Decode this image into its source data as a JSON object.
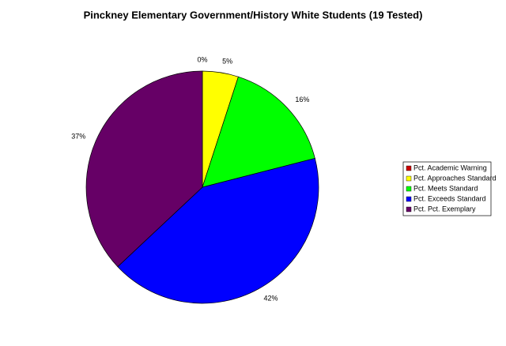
{
  "chart_data": {
    "type": "pie",
    "title": "Pinckney Elementary Government/History White Students (19 Tested)",
    "categories": [
      "Pct. Academic Warning",
      "Pct. Approaches Standard",
      "Pct. Meets Standard",
      "Pct. Exceeds Standard",
      "Pct. Pct. Exemplary"
    ],
    "values": [
      0,
      5,
      16,
      42,
      37
    ],
    "value_labels": [
      "0%",
      "5%",
      "16%",
      "42%",
      "37%"
    ],
    "colors": [
      "#cc0000",
      "#ffff00",
      "#00ff00",
      "#0000ff",
      "#660066"
    ],
    "legend": "right"
  }
}
